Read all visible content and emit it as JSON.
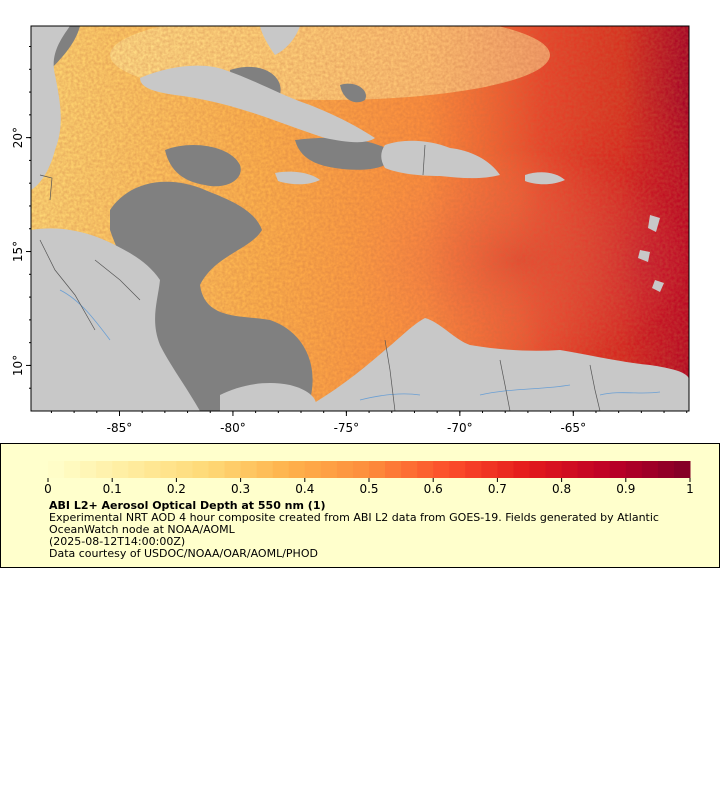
{
  "map": {
    "x_ticks": [
      {
        "lon": -85,
        "label": "-85°"
      },
      {
        "lon": -80,
        "label": "-80°"
      },
      {
        "lon": -75,
        "label": "-75°"
      },
      {
        "lon": -70,
        "label": "-70°"
      },
      {
        "lon": -65,
        "label": "-65°"
      }
    ],
    "y_ticks": [
      {
        "lat": 20,
        "label": "20°"
      },
      {
        "lat": 15,
        "label": "15°"
      },
      {
        "lat": 10,
        "label": "10°"
      }
    ],
    "lon_range": [
      -88.9,
      -59.9
    ],
    "lat_range": [
      8.0,
      24.9
    ],
    "colors": {
      "land": "#c8c8c8",
      "no_data": "#808080",
      "frame": "#000000",
      "rivers": "#6a9fd4",
      "borders": "#555555"
    }
  },
  "legend": {
    "colorbar_ticks": [
      "0",
      "0.1",
      "0.2",
      "0.3",
      "0.4",
      "0.5",
      "0.6",
      "0.7",
      "0.8",
      "0.9",
      "1"
    ],
    "colormap_stops": [
      "#ffffcc",
      "#ffeda0",
      "#fed976",
      "#feb24c",
      "#fd8d3c",
      "#fc4e2a",
      "#e31a1c",
      "#bd0026",
      "#800026"
    ],
    "title": "ABI L2+ Aerosol Optical Depth at 550 nm (1)",
    "description": "Experimental NRT AOD 4 hour composite created from ABI L2 data from GOES-19. Fields generated by Atlantic OceanWatch node at NOAA/AOML",
    "timestamp": "(2025-08-12T14:00:00Z)",
    "credit": "Data courtesy of USDOC/NOAA/OAR/AOML/PHOD",
    "background": "#ffffcc"
  }
}
